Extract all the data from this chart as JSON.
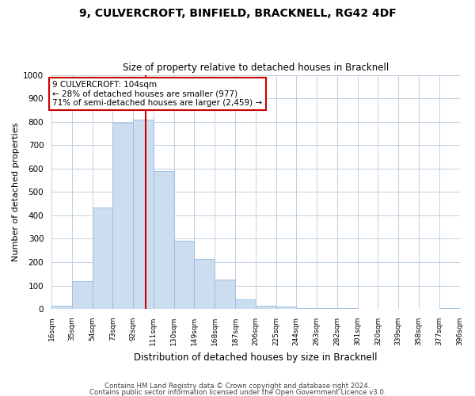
{
  "title1": "9, CULVERCROFT, BINFIELD, BRACKNELL, RG42 4DF",
  "title2": "Size of property relative to detached houses in Bracknell",
  "xlabel": "Distribution of detached houses by size in Bracknell",
  "ylabel": "Number of detached properties",
  "bar_color": "#ccddf0",
  "bar_edge_color": "#99bbdd",
  "bin_labels": [
    "16sqm",
    "35sqm",
    "54sqm",
    "73sqm",
    "92sqm",
    "111sqm",
    "130sqm",
    "149sqm",
    "168sqm",
    "187sqm",
    "206sqm",
    "225sqm",
    "244sqm",
    "263sqm",
    "282sqm",
    "301sqm",
    "320sqm",
    "339sqm",
    "358sqm",
    "377sqm",
    "396sqm"
  ],
  "bin_edges": [
    16,
    35,
    54,
    73,
    92,
    111,
    130,
    149,
    168,
    187,
    206,
    225,
    244,
    263,
    282,
    301,
    320,
    339,
    358,
    377,
    396
  ],
  "bar_heights": [
    15,
    120,
    435,
    795,
    810,
    590,
    290,
    215,
    125,
    40,
    15,
    10,
    5,
    3,
    2,
    1,
    1,
    1,
    0,
    5
  ],
  "property_line_x": 104,
  "property_line_color": "#cc0000",
  "annotation_line1": "9 CULVERCROFT: 104sqm",
  "annotation_line2": "← 28% of detached houses are smaller (977)",
  "annotation_line3": "71% of semi-detached houses are larger (2,459) →",
  "annotation_box_color": "#ffffff",
  "annotation_box_edge": "#cc0000",
  "ylim": [
    0,
    1000
  ],
  "yticks": [
    0,
    100,
    200,
    300,
    400,
    500,
    600,
    700,
    800,
    900,
    1000
  ],
  "footer1": "Contains HM Land Registry data © Crown copyright and database right 2024.",
  "footer2": "Contains public sector information licensed under the Open Government Licence v3.0.",
  "background_color": "#ffffff",
  "grid_color": "#c0d0e0"
}
